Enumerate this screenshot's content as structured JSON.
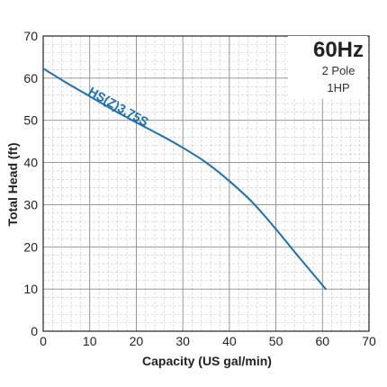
{
  "chart_data": {
    "type": "line",
    "xlabel": "Capacity (US gal/min)",
    "ylabel": "Total Head (ft)",
    "xlim": [
      0,
      70
    ],
    "ylim": [
      0,
      70
    ],
    "xticks": [
      "0",
      "10",
      "20",
      "30",
      "40",
      "50",
      "60",
      "70"
    ],
    "yticks": [
      "0",
      "10",
      "20",
      "30",
      "40",
      "50",
      "60",
      "70"
    ],
    "grid": true,
    "series": [
      {
        "name": "HS(Z)3.75S",
        "color": "#1f6fae",
        "x": [
          0,
          5,
          10,
          15,
          20,
          25,
          30,
          35,
          40,
          45,
          50,
          55,
          60.7
        ],
        "y": [
          62.3,
          58.9,
          55.7,
          52.5,
          49.5,
          46.6,
          43.5,
          40.0,
          35.6,
          30.5,
          24.2,
          17.5,
          10.0
        ]
      }
    ],
    "annotations": {
      "frequency": "60Hz",
      "poles": "2 Pole",
      "power": "1HP"
    }
  }
}
